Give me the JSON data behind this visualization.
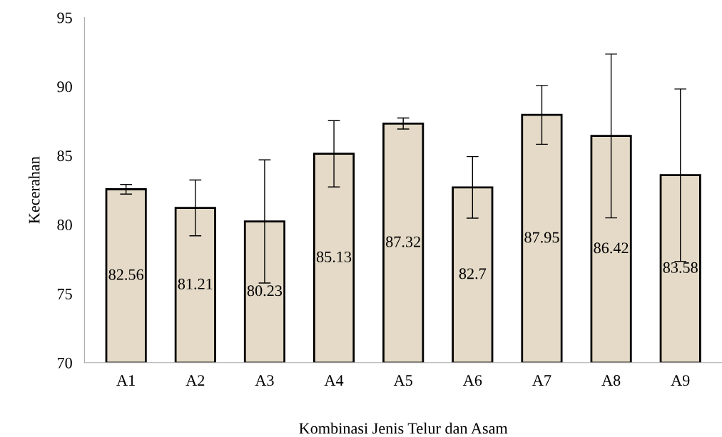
{
  "chart_data": {
    "type": "bar",
    "xlabel": "Kombinasi Jenis Telur dan Asam",
    "ylabel": "Kecerahan",
    "categories": [
      "A1",
      "A2",
      "A3",
      "A4",
      "A5",
      "A6",
      "A7",
      "A8",
      "A9"
    ],
    "values": [
      82.56,
      81.21,
      80.23,
      85.13,
      87.32,
      82.7,
      87.95,
      86.42,
      83.58
    ],
    "errors": [
      0.35,
      2.02,
      4.46,
      2.4,
      0.4,
      2.23,
      2.13,
      5.93,
      6.24
    ],
    "color": "#e4dac7",
    "data_labels": true,
    "ylim": [
      70,
      95
    ],
    "yticks": [
      70,
      75,
      80,
      85,
      90,
      95
    ],
    "grid": false
  }
}
